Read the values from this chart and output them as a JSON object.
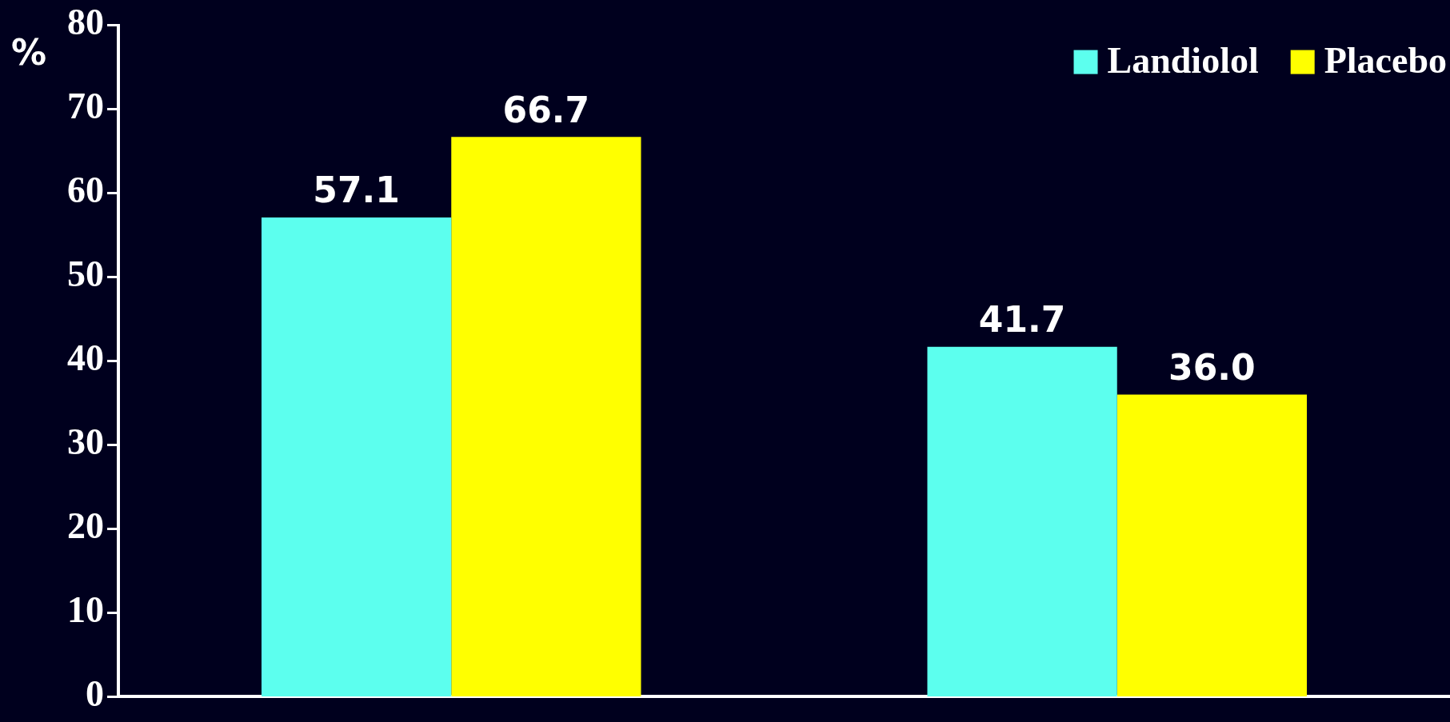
{
  "chart_data": {
    "type": "bar",
    "ylabel": "%",
    "categories": [
      null,
      null
    ],
    "series": [
      {
        "name": "Landiolol",
        "color": "#5cffee",
        "values": [
          57.1,
          41.7
        ],
        "value_labels": [
          "57.1",
          "41.7"
        ]
      },
      {
        "name": "Placebo",
        "color": "#ffff00",
        "values": [
          66.7,
          36.0
        ],
        "value_labels": [
          "66.7",
          "36.0"
        ]
      }
    ],
    "ylim": [
      0,
      80
    ],
    "yticks": [
      0,
      10,
      20,
      30,
      40,
      50,
      60,
      70,
      80
    ],
    "grid": false,
    "legend": "top right"
  }
}
